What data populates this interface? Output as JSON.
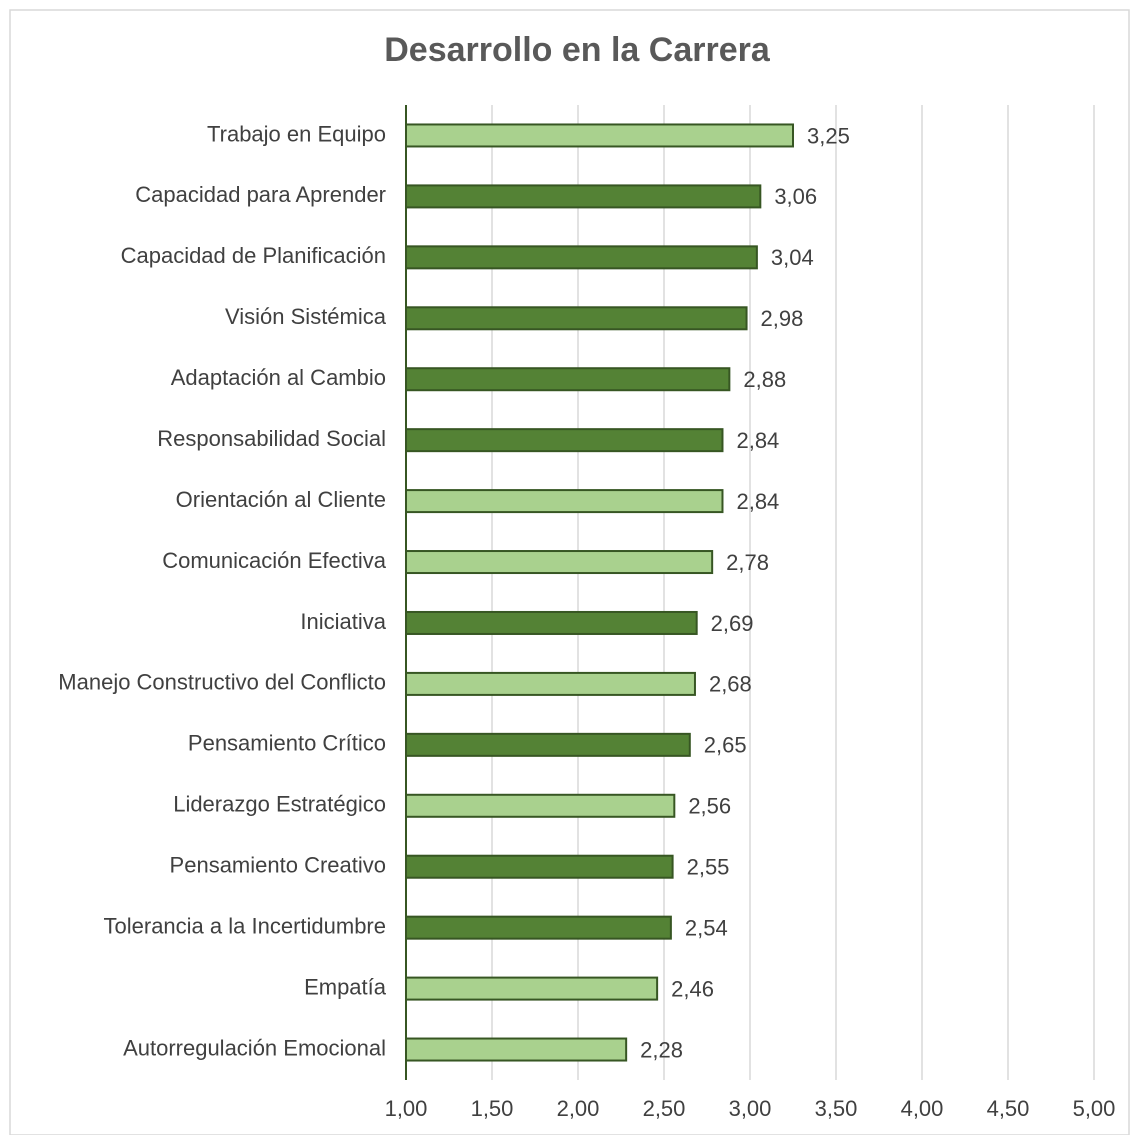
{
  "chart_data": {
    "type": "barh",
    "title": "Desarrollo en la Carrera",
    "categories": [
      "Trabajo en Equipo",
      "Capacidad para Aprender",
      "Capacidad de Planificación",
      "Visión Sistémica",
      "Adaptación al Cambio",
      "Responsabilidad Social",
      "Orientación al Cliente",
      "Comunicación Efectiva",
      "Iniciativa",
      "Manejo Constructivo del Conflicto",
      "Pensamiento Crítico",
      "Liderazgo Estratégico",
      "Pensamiento Creativo",
      "Tolerancia a la Incertidumbre",
      "Empatía",
      "Autorregulación Emocional"
    ],
    "values": [
      3.25,
      3.06,
      3.04,
      2.98,
      2.88,
      2.84,
      2.84,
      2.78,
      2.69,
      2.68,
      2.65,
      2.56,
      2.55,
      2.54,
      2.46,
      2.28
    ],
    "value_labels": [
      "3,25",
      "3,06",
      "3,04",
      "2,98",
      "2,88",
      "2,84",
      "2,84",
      "2,78",
      "2,69",
      "2,68",
      "2,65",
      "2,56",
      "2,55",
      "2,54",
      "2,46",
      "2,28"
    ],
    "colors": [
      "#a9d18e",
      "#548235",
      "#548235",
      "#548235",
      "#548235",
      "#548235",
      "#a9d18e",
      "#a9d18e",
      "#548235",
      "#a9d18e",
      "#548235",
      "#a9d18e",
      "#548235",
      "#548235",
      "#a9d18e",
      "#a9d18e"
    ],
    "edge_color": "#375623",
    "xlim": [
      1,
      5
    ],
    "xticks": [
      {
        "value": 1,
        "label": "1,00"
      },
      {
        "value": 1.5,
        "label": "1,50"
      },
      {
        "value": 2,
        "label": "2,00"
      },
      {
        "value": 2.5,
        "label": "2,50"
      },
      {
        "value": 3,
        "label": "3,00"
      },
      {
        "value": 3.5,
        "label": "3,50"
      },
      {
        "value": 4,
        "label": "4,00"
      },
      {
        "value": 4.5,
        "label": "4,50"
      },
      {
        "value": 5,
        "label": "5,00"
      }
    ],
    "grid": true
  }
}
